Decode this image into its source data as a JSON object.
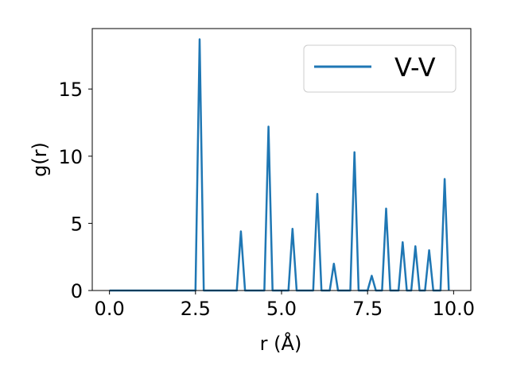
{
  "chart_data": {
    "type": "line",
    "xlabel": "r (Å)",
    "ylabel": "g(r)",
    "xlim": [
      -0.5,
      10.5
    ],
    "ylim": [
      0,
      19.5
    ],
    "xticks": [
      0.0,
      2.5,
      5.0,
      7.5,
      10.0
    ],
    "xtick_labels": [
      "0.0",
      "2.5",
      "5.0",
      "7.5",
      "10.0"
    ],
    "yticks": [
      0,
      5,
      10,
      15
    ],
    "ytick_labels": [
      "0",
      "5",
      "10",
      "15"
    ],
    "grid": false,
    "legend_position": "upper right",
    "series": [
      {
        "name": "V-V",
        "color": "#1f77b4",
        "x": [
          0.0,
          2.5,
          2.62,
          2.74,
          3.7,
          3.82,
          3.94,
          4.5,
          4.62,
          4.74,
          5.2,
          5.32,
          5.44,
          5.92,
          6.04,
          6.16,
          6.4,
          6.52,
          6.64,
          7.0,
          7.12,
          7.24,
          7.5,
          7.62,
          7.74,
          7.92,
          8.04,
          8.16,
          8.4,
          8.52,
          8.64,
          8.77,
          8.89,
          9.01,
          9.17,
          9.29,
          9.41,
          9.62,
          9.74,
          9.86
        ],
        "y": [
          0.0,
          0.0,
          18.7,
          0.0,
          0.0,
          4.4,
          0.0,
          0.0,
          12.2,
          0.0,
          0.0,
          4.6,
          0.0,
          0.0,
          7.2,
          0.0,
          0.0,
          2.0,
          0.0,
          0.0,
          10.3,
          0.0,
          0.0,
          1.1,
          0.0,
          0.0,
          6.1,
          0.0,
          0.0,
          3.6,
          0.0,
          0.0,
          3.3,
          0.0,
          0.0,
          3.0,
          0.0,
          0.0,
          8.3,
          0.0
        ]
      }
    ]
  }
}
